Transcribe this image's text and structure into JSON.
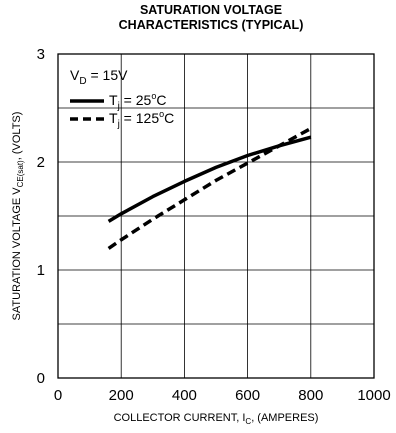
{
  "chart_data": {
    "type": "line",
    "title": [
      "SATURATION VOLTAGE",
      "CHARACTERISTICS (TYPICAL)"
    ],
    "xlabel": {
      "main": "COLLECTOR CURRENT, I",
      "sub": "C",
      "post": ", (AMPERES)"
    },
    "ylabel": {
      "main": "SATURATION VOLTAGE V",
      "sub": "CE(sat)",
      "post": ", (VOLTS)"
    },
    "xlim": [
      0,
      1000
    ],
    "ylim": [
      0,
      3
    ],
    "xticks": [
      "0",
      "200",
      "400",
      "600",
      "800",
      "1000"
    ],
    "yticks": [
      "0",
      "1",
      "2",
      "3"
    ],
    "grid": true,
    "annotation": {
      "main": "V",
      "sub": "D",
      "post": " = 15V"
    },
    "legend_position": "top-left",
    "series": [
      {
        "name": {
          "main": "T",
          "sub": "j",
          "post": " = 25",
          "sup": "o",
          "unit": "C"
        },
        "style": "solid",
        "x": [
          160,
          200,
          300,
          400,
          500,
          600,
          700,
          800
        ],
        "y": [
          1.45,
          1.52,
          1.68,
          1.82,
          1.95,
          2.06,
          2.15,
          2.23
        ]
      },
      {
        "name": {
          "main": "T",
          "sub": "j",
          "post": " = 125",
          "sup": "o",
          "unit": "C"
        },
        "style": "dashed",
        "x": [
          160,
          200,
          300,
          400,
          500,
          600,
          700,
          800
        ],
        "y": [
          1.2,
          1.28,
          1.47,
          1.65,
          1.83,
          1.99,
          2.15,
          2.31
        ]
      }
    ]
  }
}
